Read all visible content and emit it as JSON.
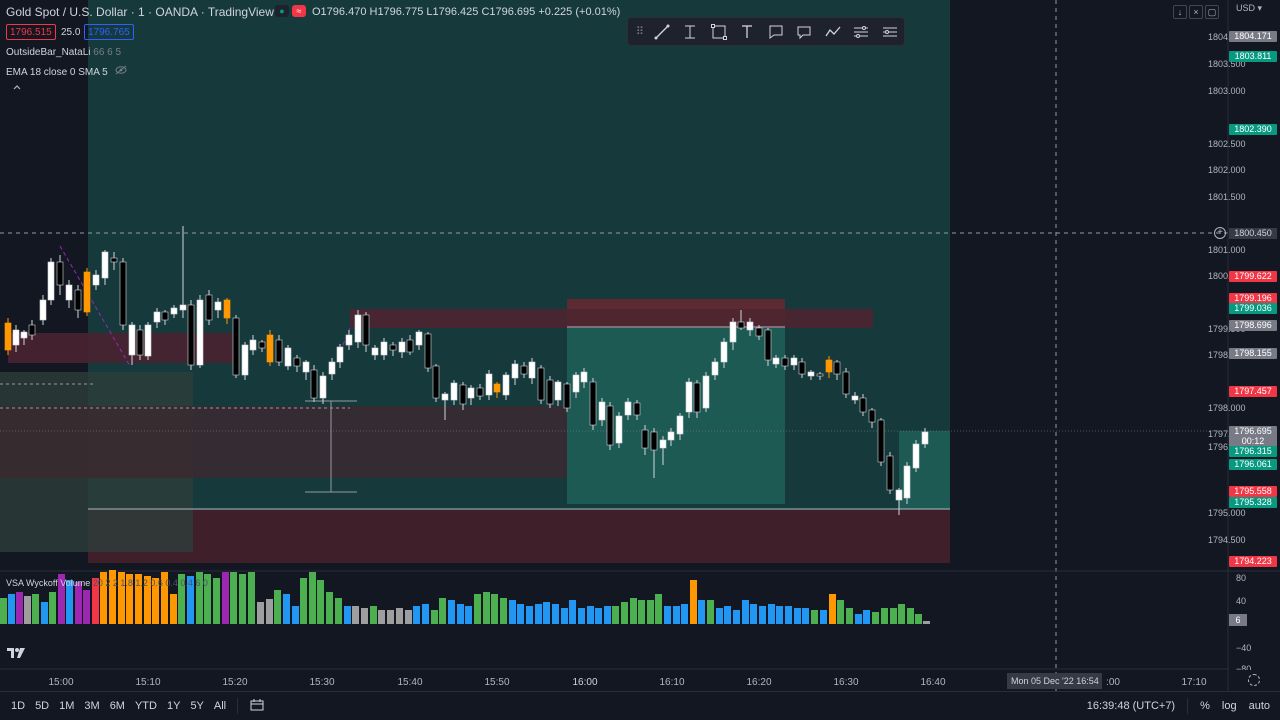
{
  "header": {
    "title": "Gold Spot / U.S. Dollar · 1 · OANDA · TradingView",
    "open": "O1796.470",
    "high": "H1796.775",
    "low": "L1796.425",
    "close": "C1796.695",
    "change": "+0.225 (+0.01%)",
    "sell_price": "1796.515",
    "spread": "25.0",
    "buy_price": "1796.765",
    "currency": "USD"
  },
  "indicators": [
    {
      "name": "OutsideBar_NataLi",
      "params": "66 6 5"
    },
    {
      "name": "EMA 18 close 0 SMA 5",
      "params": ""
    }
  ],
  "volume_indicator": {
    "name": "VSA Wyckoff Volume",
    "params": "20 2 2 1.8 1.2 0.6 0.4 0.4 6 0"
  },
  "drawing_toolbar": {
    "tools": [
      "grip-icon",
      "trendline-icon",
      "text-cursor-icon",
      "rectangle-icon",
      "text-icon",
      "callout-icon",
      "comment-icon",
      "path-icon",
      "settings-lines-icon",
      "more-lines-icon"
    ]
  },
  "price_axis": {
    "labels": [
      "1804.000",
      "1803.500",
      "1803.000",
      "1802.500",
      "1802.000",
      "1801.500",
      "1801.000",
      "1800.000",
      "1799.500",
      "1798.500",
      "1798.000",
      "1797.000",
      "1796.500",
      "1795.000",
      "1794.500"
    ],
    "crosshair_price": "1800.450"
  },
  "price_tags": [
    {
      "value": "1804.171",
      "color": "#787b86"
    },
    {
      "value": "1803.811",
      "color": "#089981"
    },
    {
      "value": "1802.390",
      "color": "#089981"
    },
    {
      "value": "1799.622",
      "color": "#f23645"
    },
    {
      "value": "1799.196",
      "color": "#f23645"
    },
    {
      "value": "1799.036",
      "color": "#089981"
    },
    {
      "value": "1798.696",
      "color": "#787b86"
    },
    {
      "value": "1798.155",
      "color": "#787b86"
    },
    {
      "value": "1797.457",
      "color": "#f23645"
    },
    {
      "value": "1796.695",
      "color": "#787b86"
    },
    {
      "value": "00:12",
      "color": "#787b86"
    },
    {
      "value": "1796.315",
      "color": "#089981"
    },
    {
      "value": "1796.061",
      "color": "#089981"
    },
    {
      "value": "1795.558",
      "color": "#f23645"
    },
    {
      "value": "1795.328",
      "color": "#089981"
    },
    {
      "value": "1794.223",
      "color": "#f23645"
    }
  ],
  "volume_axis": {
    "labels": [
      "80",
      "40",
      "−40",
      "−80"
    ],
    "current": "6"
  },
  "time_axis": {
    "labels": [
      "15:00",
      "15:10",
      "15:20",
      "15:30",
      "15:40",
      "15:50",
      "16:00",
      "16:10",
      "16:20",
      "16:30",
      "16:40",
      ":00",
      "17:10"
    ],
    "crosshair_time": "Mon 05 Dec '22   16:54"
  },
  "bottom_bar": {
    "ranges": [
      "1D",
      "5D",
      "1M",
      "3M",
      "6M",
      "YTD",
      "1Y",
      "5Y",
      "All"
    ],
    "clock": "16:39:48 (UTC+7)",
    "percent": "%",
    "log": "log",
    "auto": "auto"
  },
  "colors": {
    "background": "#131722",
    "up": "#ffffff",
    "down": "#000000",
    "bull_zone": "#1f5b54",
    "bear_zone": "#5b2430",
    "accent": "#2962ff"
  }
}
